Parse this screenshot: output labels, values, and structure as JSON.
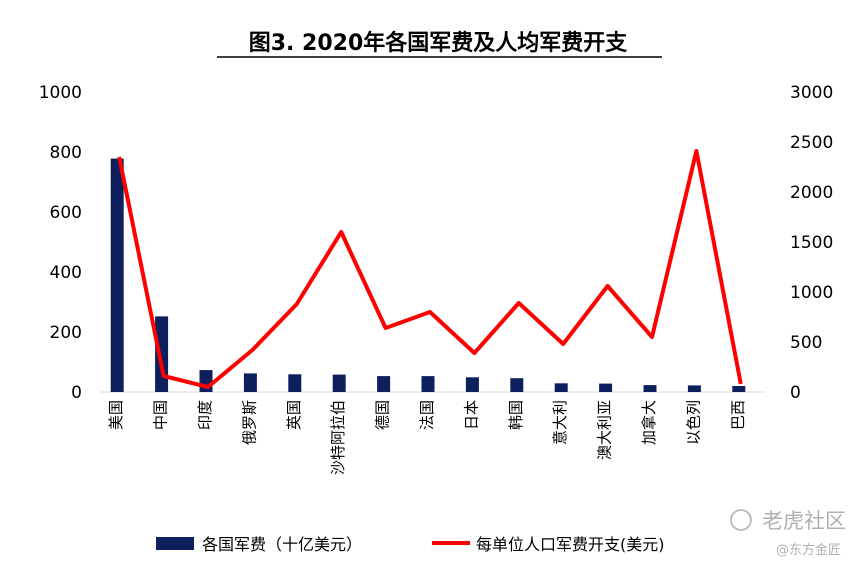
{
  "chart_data": {
    "type": "bar",
    "title": "图3. 2020年各国军费及人均军费开支",
    "categories": [
      "美国",
      "中国",
      "印度",
      "俄罗斯",
      "英国",
      "沙特阿拉伯",
      "德国",
      "法国",
      "日本",
      "韩国",
      "意大利",
      "澳大利亚",
      "加拿大",
      "以色列",
      "巴西"
    ],
    "y_left": {
      "ylim": [
        0,
        1000
      ],
      "ticks": [
        0,
        200,
        400,
        600,
        800,
        1000
      ]
    },
    "y_right": {
      "ylim": [
        0,
        3000
      ],
      "ticks": [
        0,
        500,
        1000,
        1500,
        2000,
        2500,
        3000
      ]
    },
    "series": [
      {
        "name": "各国军费（十亿美元）",
        "type": "bar",
        "axis": "left",
        "color": "#0d1f5c",
        "values": [
          778,
          252,
          73,
          62,
          59,
          58,
          53,
          53,
          49,
          46,
          29,
          28,
          23,
          22,
          20
        ]
      },
      {
        "name": "每单位人口军费开支(美元)",
        "type": "line",
        "axis": "right",
        "color": "#ff0000",
        "values": [
          2350,
          160,
          50,
          420,
          880,
          1600,
          640,
          800,
          390,
          890,
          480,
          1060,
          550,
          2410,
          80
        ]
      }
    ],
    "legend_position": "bottom",
    "grid": false
  },
  "watermark": {
    "brand": "老虎社区",
    "handle": "@东方金匠"
  }
}
